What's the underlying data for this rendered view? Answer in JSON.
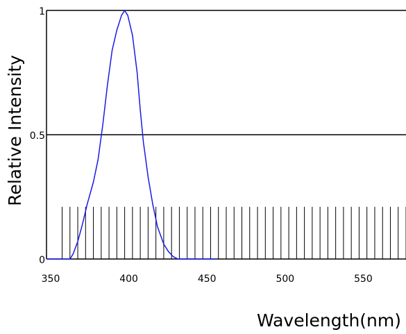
{
  "chart_data": {
    "type": "line",
    "title": "",
    "xlabel": "Wavelength(nm)",
    "ylabel": "Relative  Intensity",
    "xlim": [
      350,
      580
    ],
    "ylim": [
      0,
      1
    ],
    "x_ticks": [
      350,
      400,
      450,
      500,
      550
    ],
    "x_tick_labels": [
      "350",
      "400",
      "450",
      "500",
      "550"
    ],
    "y_ticks": [
      0,
      0.5,
      1
    ],
    "y_tick_labels": [
      "0",
      "0.5",
      "1"
    ],
    "horizontal_gridlines": [
      0.5,
      1
    ],
    "vertical_markers": {
      "start": 360,
      "step": 5,
      "end": 580,
      "height": 0.21
    },
    "colors": {
      "series": "#1a1ae6",
      "axes": "#000000",
      "background": "#ffffff"
    },
    "series": [
      {
        "x": [
          350,
          362,
          365,
          367,
          370,
          373,
          376,
          380,
          383,
          386,
          389,
          392,
          395,
          398,
          400,
          402,
          405,
          408,
          410,
          412,
          415,
          418,
          421,
          425,
          428,
          431,
          434,
          436,
          440,
          445,
          450,
          455,
          458
        ],
        "y": [
          0,
          0,
          0,
          0.02,
          0.07,
          0.14,
          0.22,
          0.31,
          0.4,
          0.54,
          0.7,
          0.84,
          0.92,
          0.98,
          1.0,
          0.98,
          0.9,
          0.75,
          0.6,
          0.47,
          0.33,
          0.22,
          0.13,
          0.06,
          0.03,
          0.01,
          0.0,
          0,
          0,
          0,
          0,
          0,
          0
        ]
      }
    ]
  }
}
